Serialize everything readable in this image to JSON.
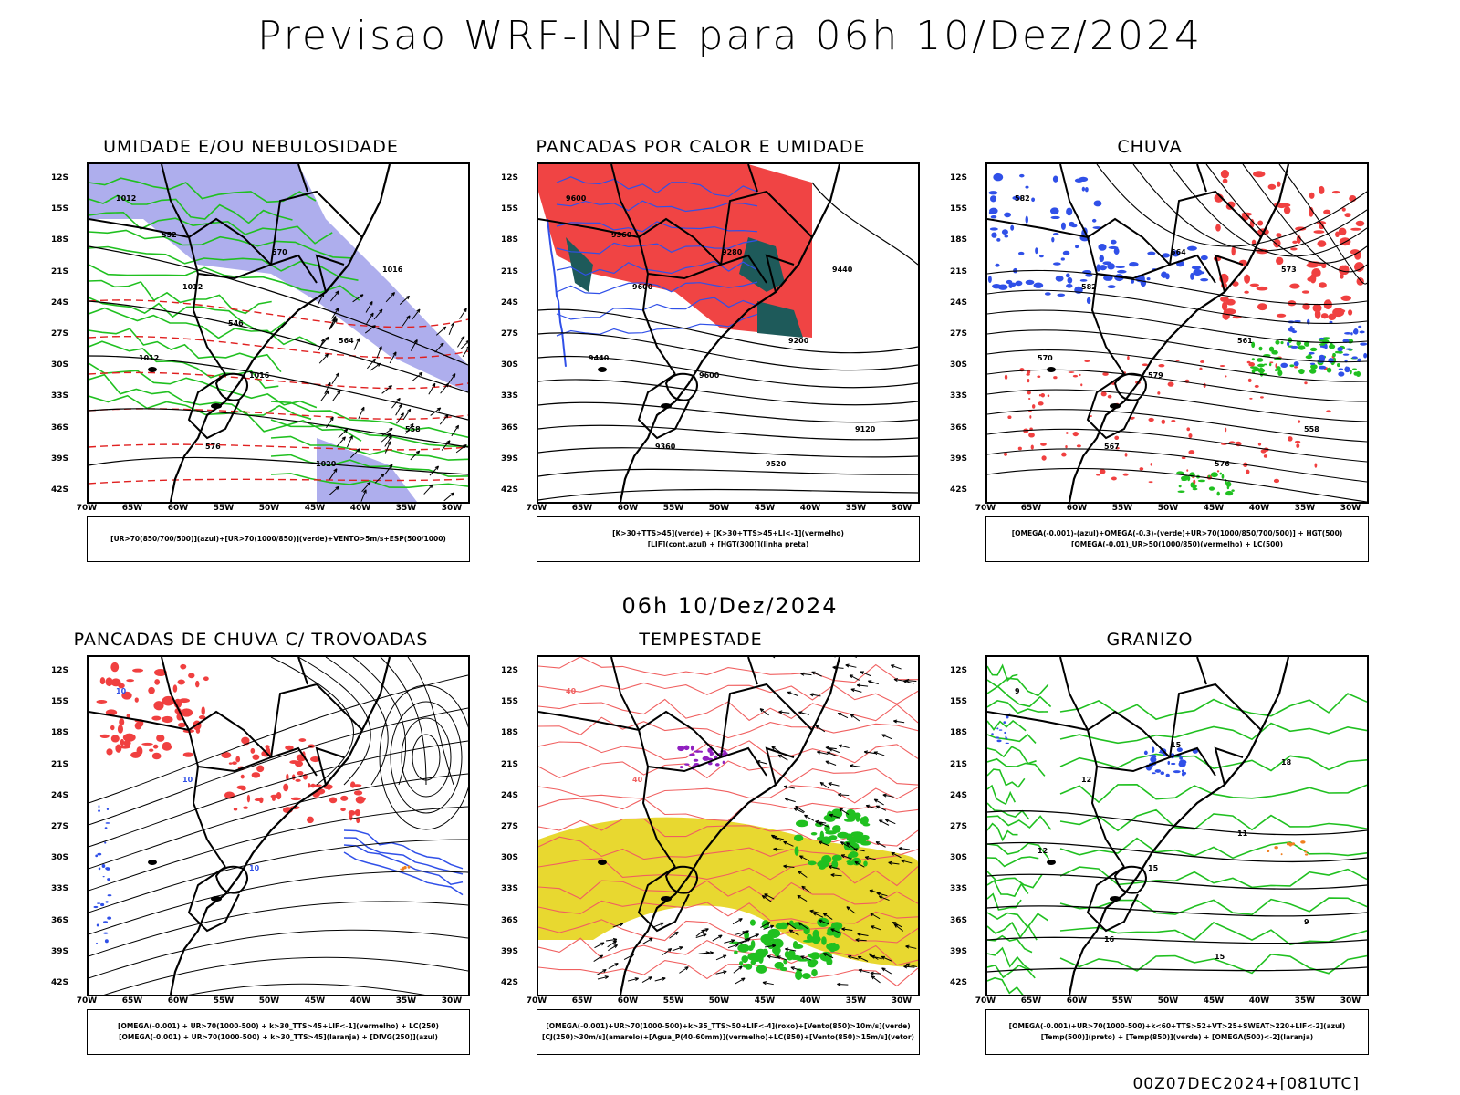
{
  "main_title": "Previsao WRF-INPE  para 06h 10/Dez/2024",
  "mid_title": "06h 10/Dez/2024",
  "footer": "00Z07DEC2024+[081UTC]",
  "lat_labels": [
    "12S",
    "15S",
    "18S",
    "21S",
    "24S",
    "27S",
    "30S",
    "33S",
    "36S",
    "39S",
    "42S"
  ],
  "lon_labels": [
    "70W",
    "65W",
    "60W",
    "55W",
    "50W",
    "45W",
    "40W",
    "35W",
    "30W"
  ],
  "colors": {
    "red": "#f04040",
    "blue": "#3050e8",
    "green": "#20c020",
    "lavender": "#9a9ae8",
    "yellow": "#e8d830",
    "teal": "#1e5a5a",
    "purple": "#9020c0",
    "orange": "#f08020"
  },
  "panels": [
    {
      "title": "UMIDADE E/OU NEBULOSIDADE",
      "variant": "umidade",
      "legend": [
        "[UR>70(850/700/500)](azul)+[UR>70(1000/850)](verde)+VENTO>5m/s+ESP(500/1000)"
      ],
      "contour_labels": [
        "1012",
        "1012",
        "1016",
        "1020",
        "1016",
        "1012",
        "576",
        "570",
        "564",
        "558",
        "552",
        "546"
      ]
    },
    {
      "title": "PANCADAS POR CALOR E UMIDADE",
      "variant": "pancadas",
      "legend": [
        "[K>30+TTS>45](verde) + [K>30+TTS>45+LI<-1](vermelho)",
        "[LIF](cont.azul) + [HGT(300)](linha preta)"
      ],
      "contour_labels": [
        "9600",
        "9600",
        "9600",
        "9520",
        "9440",
        "9440",
        "9360",
        "9280",
        "9200",
        "9120",
        "9360"
      ]
    },
    {
      "title": "CHUVA",
      "variant": "chuva",
      "legend": [
        "[OMEGA(-0.001)-(azul)+OMEGA(-0.3)-(verde)+UR>70(1000/850/700/500)] + HGT(500)",
        "[OMEGA(-0.01)_UR>50(1000/850)(vermelho) + LC(500)"
      ],
      "contour_labels": [
        "582",
        "582",
        "579",
        "576",
        "573",
        "570",
        "567",
        "564",
        "561",
        "558"
      ]
    },
    {
      "title": "PANCADAS DE CHUVA C/ TROVOADAS",
      "variant": "trovoadas",
      "legend": [
        "[OMEGA(-0.001) + UR>70(1000-500) + k>30_TTS>45+LIF<-1](vermelho) + LC(250)",
        "[OMEGA(-0.001) + UR>70(1000-500) + k>30_TTS>45](laranja) + [DIVG(250)](azul)"
      ],
      "contour_labels": [
        "10",
        "10",
        "10"
      ]
    },
    {
      "title": "TEMPESTADE",
      "variant": "tempestade",
      "legend": [
        "[OMEGA(-0.001)+UR>70(1000-500)+k>35_TTS>50+LIF<-4](roxo)+[Vento(850)>10m/s](verde)",
        "[CJ(250)>30m/s](amarelo)+[Agua_P(40-60mm)](vermelho)+LC(850)+[Vento(850)>15m/s](vetor)"
      ],
      "contour_labels": [
        "40",
        "40"
      ]
    },
    {
      "title": "GRANIZO",
      "variant": "granizo",
      "legend": [
        "[OMEGA(-0.001)+UR>70(1000-500)+k<60+TTS>52+VT>25+SWEAT>220+LIF<-2](azul)",
        "[Temp(500)](preto) + [Temp(850)](verde) + [OMEGA(500)<-2](laranja)"
      ],
      "contour_labels": [
        "9",
        "12",
        "15",
        "15",
        "18",
        "12",
        "16",
        "15",
        "11",
        "9"
      ]
    }
  ]
}
